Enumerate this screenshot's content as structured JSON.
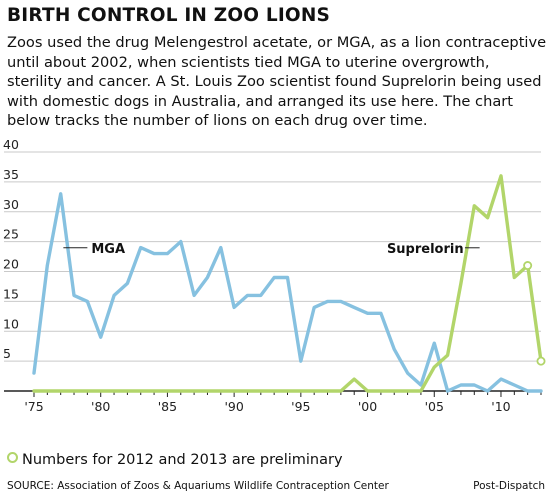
{
  "header": {
    "title": "BIRTH CONTROL IN ZOO LIONS",
    "intro": "Zoos used the drug Melengestrol acetate, or MGA, as a lion contraceptive until about 2002, when scientists tied MGA to uterine overgrowth, sterility and cancer. A St. Louis Zoo scientist found Suprelorin being used with domestic dogs in Australia, and arranged its use here. The chart below tracks the number of lions on each drug over time."
  },
  "footer": {
    "note": "Numbers for 2012 and 2013 are preliminary",
    "source": "SOURCE: Association of Zoos & Aquariums Wildlife Contraception Center",
    "credit": "Post-Dispatch"
  },
  "colors": {
    "mga": "#86c1e0",
    "suprelorin": "#b2d56a",
    "grid": "#c9c9c9",
    "axis": "#222222"
  },
  "chart_data": {
    "type": "line",
    "title": "",
    "xlabel": "",
    "ylabel": "",
    "xlim": [
      1975,
      2013
    ],
    "ylim": [
      0,
      40
    ],
    "grid": true,
    "y_ticks": [
      5,
      10,
      15,
      20,
      25,
      30,
      35,
      40
    ],
    "x_tick_labels": [
      "'75",
      "'80",
      "'85",
      "'90",
      "'95",
      "'00",
      "'05",
      "'10"
    ],
    "x_tick_years": [
      1975,
      1980,
      1985,
      1990,
      1995,
      2000,
      2005,
      2010
    ],
    "preliminary_years": [
      2012,
      2013
    ],
    "series": [
      {
        "name": "MGA",
        "x": [
          1975,
          1976,
          1977,
          1978,
          1979,
          1980,
          1981,
          1982,
          1983,
          1984,
          1985,
          1986,
          1987,
          1988,
          1989,
          1990,
          1991,
          1992,
          1993,
          1994,
          1995,
          1996,
          1997,
          1998,
          1999,
          2000,
          2001,
          2002,
          2003,
          2004,
          2005,
          2006,
          2007,
          2008,
          2009,
          2010,
          2011,
          2012,
          2013
        ],
        "values": [
          3,
          21,
          33,
          16,
          15,
          9,
          16,
          18,
          24,
          23,
          23,
          25,
          16,
          19,
          24,
          14,
          16,
          16,
          19,
          19,
          5,
          14,
          15,
          15,
          14,
          13,
          13,
          7,
          3,
          1,
          8,
          0,
          1,
          1,
          0,
          2,
          1,
          0,
          0
        ]
      },
      {
        "name": "Suprelorin",
        "x": [
          1975,
          1976,
          1977,
          1978,
          1979,
          1980,
          1981,
          1982,
          1983,
          1984,
          1985,
          1986,
          1987,
          1988,
          1989,
          1990,
          1991,
          1992,
          1993,
          1994,
          1995,
          1996,
          1997,
          1998,
          1999,
          2000,
          2001,
          2002,
          2003,
          2004,
          2005,
          2006,
          2007,
          2008,
          2009,
          2010,
          2011,
          2012,
          2013
        ],
        "values": [
          0,
          0,
          0,
          0,
          0,
          0,
          0,
          0,
          0,
          0,
          0,
          0,
          0,
          0,
          0,
          0,
          0,
          0,
          0,
          0,
          0,
          0,
          0,
          0,
          2,
          0,
          0,
          0,
          0,
          0,
          4,
          6,
          18,
          31,
          29,
          36,
          19,
          21,
          5
        ]
      }
    ]
  }
}
